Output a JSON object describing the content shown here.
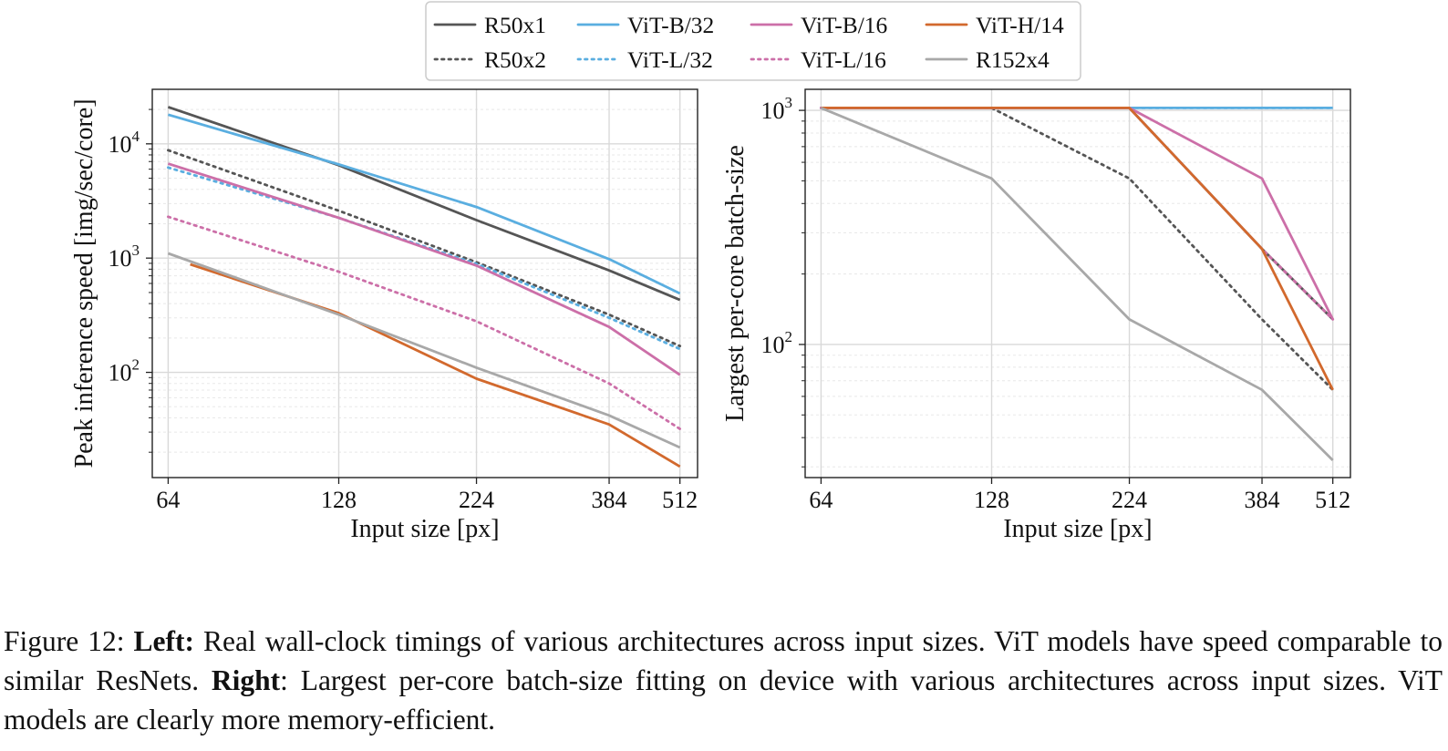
{
  "legend": {
    "entries": [
      {
        "name": "R50x1",
        "color": "#555555",
        "dash": "solid"
      },
      {
        "name": "R50x2",
        "color": "#555555",
        "dash": "dotted"
      },
      {
        "name": "ViT-B/32",
        "color": "#5aaee0",
        "dash": "solid"
      },
      {
        "name": "ViT-L/32",
        "color": "#5aaee0",
        "dash": "dotted"
      },
      {
        "name": "ViT-B/16",
        "color": "#cc6fa8",
        "dash": "solid"
      },
      {
        "name": "ViT-L/16",
        "color": "#cc6fa8",
        "dash": "dotted"
      },
      {
        "name": "ViT-H/14",
        "color": "#d2692d",
        "dash": "solid"
      },
      {
        "name": "R152x4",
        "color": "#a8a8a8",
        "dash": "solid"
      }
    ]
  },
  "chart_data": [
    {
      "type": "line",
      "title": "",
      "xlabel": "Input size [px]",
      "ylabel": "Peak inference speed [img/sec/core]",
      "x_scale": "log",
      "y_scale": "log",
      "xlim": [
        60,
        550
      ],
      "ylim": [
        12,
        30000
      ],
      "x_ticks": [
        64,
        128,
        224,
        384,
        512
      ],
      "y_ticks": [
        {
          "value": 100,
          "base": "10",
          "exp": "2"
        },
        {
          "value": 1000,
          "base": "10",
          "exp": "3"
        },
        {
          "value": 10000,
          "base": "10",
          "exp": "4"
        }
      ],
      "grid": true,
      "series": [
        {
          "name": "R50x1",
          "x": [
            64,
            128,
            224,
            384,
            512
          ],
          "y": [
            21000,
            6500,
            2150,
            780,
            430
          ]
        },
        {
          "name": "R50x2",
          "x": [
            64,
            128,
            224,
            384,
            512
          ],
          "y": [
            8800,
            2600,
            920,
            320,
            170
          ]
        },
        {
          "name": "ViT-B/32",
          "x": [
            64,
            128,
            224,
            384,
            512
          ],
          "y": [
            18000,
            6600,
            2800,
            980,
            490
          ]
        },
        {
          "name": "ViT-L/32",
          "x": [
            64,
            128,
            224,
            384,
            512
          ],
          "y": [
            6200,
            2250,
            890,
            300,
            160
          ]
        },
        {
          "name": "ViT-B/16",
          "x": [
            64,
            128,
            224,
            384,
            512
          ],
          "y": [
            6700,
            2250,
            860,
            250,
            95
          ]
        },
        {
          "name": "ViT-L/16",
          "x": [
            64,
            128,
            224,
            384,
            512
          ],
          "y": [
            2300,
            760,
            280,
            80,
            32
          ]
        },
        {
          "name": "ViT-H/14",
          "x": [
            70,
            128,
            224,
            384,
            512
          ],
          "y": [
            880,
            330,
            88,
            35,
            15
          ]
        },
        {
          "name": "R152x4",
          "x": [
            64,
            128,
            224,
            384,
            512
          ],
          "y": [
            1100,
            320,
            110,
            42,
            22
          ]
        }
      ]
    },
    {
      "type": "line",
      "title": "",
      "xlabel": "Input size [px]",
      "ylabel": "Largest per-core batch-size",
      "x_scale": "log",
      "y_scale": "log",
      "xlim": [
        60,
        550
      ],
      "ylim": [
        27,
        1230
      ],
      "x_ticks": [
        64,
        128,
        224,
        384,
        512
      ],
      "y_ticks": [
        {
          "value": 100,
          "base": "10",
          "exp": "2"
        },
        {
          "value": 1000,
          "base": "10",
          "exp": "3"
        }
      ],
      "grid": true,
      "series": [
        {
          "name": "R50x1",
          "x": [
            64,
            128,
            224,
            384,
            512
          ],
          "y": [
            1024,
            1024,
            1024,
            256,
            128
          ]
        },
        {
          "name": "R50x2",
          "x": [
            64,
            128,
            224,
            384,
            512
          ],
          "y": [
            1024,
            1024,
            512,
            128,
            64
          ]
        },
        {
          "name": "ViT-B/32",
          "x": [
            64,
            128,
            224,
            384,
            512
          ],
          "y": [
            1024,
            1024,
            1024,
            1024,
            1024
          ]
        },
        {
          "name": "ViT-L/32",
          "x": [
            64,
            128,
            224,
            384,
            512
          ],
          "y": [
            1024,
            1024,
            1024,
            1024,
            1024
          ]
        },
        {
          "name": "ViT-B/16",
          "x": [
            64,
            128,
            224,
            384,
            512
          ],
          "y": [
            1024,
            1024,
            1024,
            512,
            128
          ]
        },
        {
          "name": "ViT-L/16",
          "x": [
            64,
            128,
            224,
            384,
            512
          ],
          "y": [
            1024,
            1024,
            1024,
            256,
            128
          ]
        },
        {
          "name": "ViT-H/14",
          "x": [
            64,
            128,
            224,
            384,
            512
          ],
          "y": [
            1024,
            1024,
            1024,
            256,
            64
          ]
        },
        {
          "name": "R152x4",
          "x": [
            64,
            128,
            224,
            384,
            512
          ],
          "y": [
            1024,
            512,
            128,
            64,
            32
          ]
        }
      ]
    }
  ],
  "caption": {
    "label": "Figure 12:",
    "left_heading": "Left:",
    "left_text": "Real wall-clock timings of various architectures across input sizes.  ViT models have speed comparable to similar ResNets.",
    "right_heading": "Right",
    "right_text": ": Largest per-core batch-size fitting on device with various architectures across input sizes. ViT models are clearly more memory-efficient."
  }
}
